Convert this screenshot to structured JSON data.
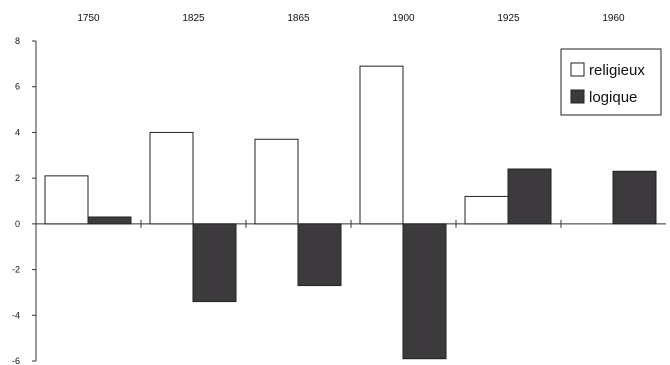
{
  "chart_data": {
    "type": "bar",
    "title": "",
    "xlabel": "",
    "ylabel": "",
    "categories": [
      "1750",
      "1825",
      "1865",
      "1900",
      "1925",
      "1960"
    ],
    "series": [
      {
        "name": "religieux",
        "values": [
          2.1,
          4.0,
          3.7,
          6.9,
          1.2,
          0.0
        ],
        "color": "#ffffff"
      },
      {
        "name": "logique",
        "values": [
          0.3,
          -3.4,
          -2.7,
          -5.9,
          2.4,
          2.3
        ],
        "color": "#3d3a3e"
      }
    ],
    "ylim": [
      -6,
      8
    ],
    "yticks": [
      -6,
      -4,
      -2,
      0,
      2,
      4,
      6,
      8
    ],
    "legend_position": "top-right",
    "grid": false
  }
}
